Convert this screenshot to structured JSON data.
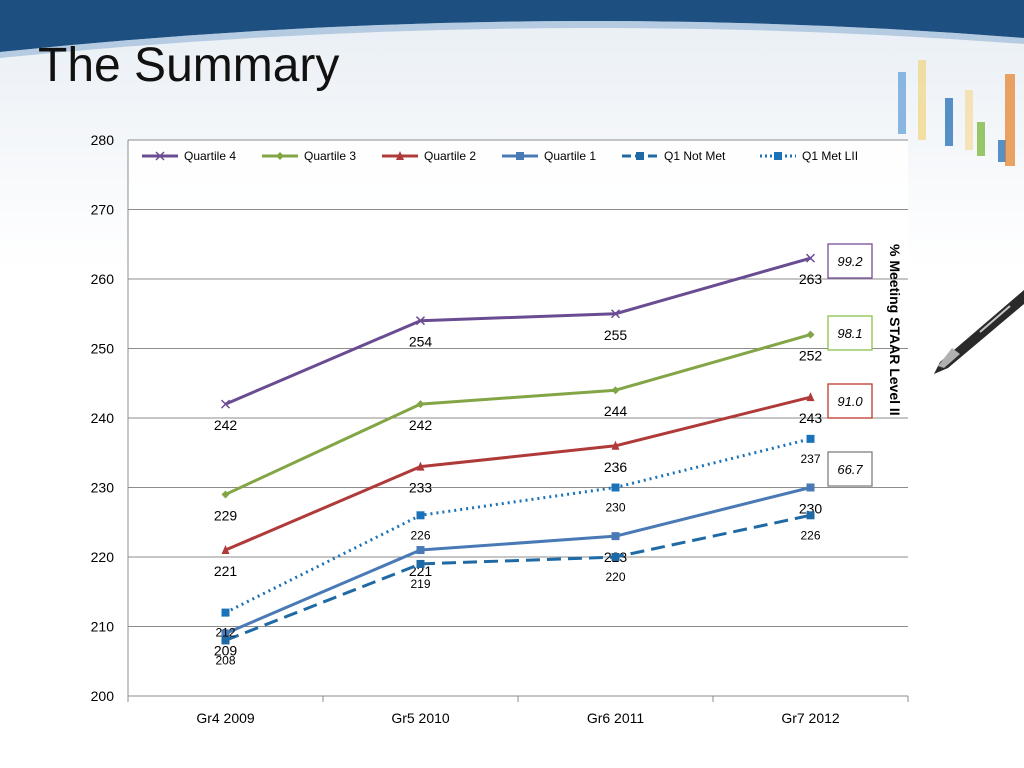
{
  "slide": {
    "title": "The Summary"
  },
  "chart_data": {
    "type": "line",
    "categories": [
      "Gr4 2009",
      "Gr5 2010",
      "Gr6 2011",
      "Gr7 2012"
    ],
    "ylim": [
      200,
      280
    ],
    "yticks": [
      "200",
      "210",
      "220",
      "230",
      "240",
      "250",
      "260",
      "270",
      "280"
    ],
    "grid": true,
    "legend_position": "top",
    "series": [
      {
        "name": "Quartile 4",
        "values": [
          242,
          254,
          255,
          263
        ],
        "labels": [
          "242",
          "254",
          "255",
          "263"
        ],
        "color": "#6a4c93",
        "marker": "x",
        "dash": "solid"
      },
      {
        "name": "Quartile 3",
        "values": [
          229,
          242,
          244,
          252
        ],
        "labels": [
          "229",
          "242",
          "244",
          "252"
        ],
        "color": "#82a545",
        "marker": "diamond",
        "dash": "solid"
      },
      {
        "name": "Quartile 2",
        "values": [
          221,
          233,
          236,
          243
        ],
        "labels": [
          "221",
          "233",
          "236",
          "243"
        ],
        "color": "#b03a3a",
        "marker": "triangle",
        "dash": "solid"
      },
      {
        "name": "Quartile 1",
        "values": [
          209,
          221,
          223,
          230
        ],
        "labels": [
          "209",
          "221",
          "223",
          "230"
        ],
        "color": "#4a7ab5",
        "marker": "square",
        "dash": "solid"
      },
      {
        "name": "Q1 Not Met",
        "values": [
          208,
          219,
          220,
          226
        ],
        "labels": [
          "208",
          "219",
          "220",
          "226"
        ],
        "color": "#1f6aa5",
        "marker": "square",
        "dash": "dashed"
      },
      {
        "name": "Q1 Met LII",
        "values": [
          212,
          226,
          230,
          237
        ],
        "labels": [
          "212",
          "226",
          "230",
          "237"
        ],
        "color": "#1a73b8",
        "marker": "square",
        "dash": "dotted"
      }
    ],
    "side_label": "% Meeting STAAR Level II",
    "side_values": [
      {
        "value": "99.2",
        "color": "#7a4c9a"
      },
      {
        "value": "98.1",
        "color": "#8cc24a"
      },
      {
        "value": "91.0",
        "color": "#c0392b"
      },
      {
        "value": "66.7",
        "color": "#7f7f7f"
      }
    ]
  }
}
